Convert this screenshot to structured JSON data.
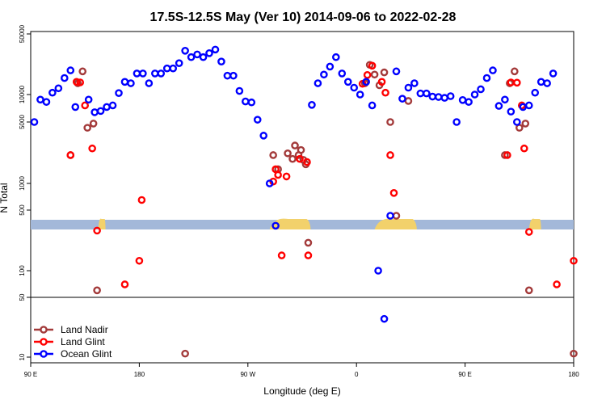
{
  "chart_data": {
    "type": "scatter",
    "title": "17.5S-12.5S May (Ver 10)   2014-09-06 to 2022-02-28",
    "xlabel": "Longitude (deg E)",
    "ylabel": "N Total",
    "y_scale": "log",
    "ylim": [
      7,
      55000
    ],
    "x_ticks": [
      "90 E",
      "180",
      "90 W",
      "0",
      "90 E",
      "180"
    ],
    "y_ticks": [
      "10",
      "50",
      "100",
      "500",
      "1000",
      "5000",
      "10000",
      "50000"
    ],
    "x_unit_note": "longitude eastward from 90 E (0 to 450 deg)",
    "legend_position": "bottom-left",
    "colors": {
      "land_nadir": "#a33a3a",
      "land_glint": "#ff0000",
      "ocean_glint": "#0000ff",
      "ocean_band": "#a3b8d9",
      "land_band": "#f2d16b"
    },
    "series": [
      {
        "name": "Land Nadir",
        "points": [
          [
            33,
            2100
          ],
          [
            39,
            13500
          ],
          [
            43,
            18500
          ],
          [
            47,
            4300
          ],
          [
            52,
            4800
          ],
          [
            55,
            60
          ],
          [
            128,
            11
          ],
          [
            201,
            2100
          ],
          [
            205,
            1450
          ],
          [
            213,
            2200
          ],
          [
            217,
            1900
          ],
          [
            219,
            2700
          ],
          [
            222,
            2100
          ],
          [
            224,
            2400
          ],
          [
            226,
            1850
          ],
          [
            228,
            1650
          ],
          [
            230,
            210
          ],
          [
            277,
            13500
          ],
          [
            281,
            22000
          ],
          [
            285,
            17000
          ],
          [
            289,
            12800
          ],
          [
            293,
            18000
          ],
          [
            298,
            5000
          ],
          [
            303,
            430
          ],
          [
            313,
            8500
          ],
          [
            393,
            2100
          ],
          [
            397,
            13500
          ],
          [
            401,
            18500
          ],
          [
            405,
            4300
          ],
          [
            410,
            4800
          ],
          [
            413,
            60
          ],
          [
            450,
            11
          ]
        ]
      },
      {
        "name": "Land Glint",
        "points": [
          [
            33,
            2100
          ],
          [
            38,
            14000
          ],
          [
            41,
            13800
          ],
          [
            45,
            7600
          ],
          [
            51,
            2500
          ],
          [
            55,
            290
          ],
          [
            78,
            70
          ],
          [
            90,
            130
          ],
          [
            92,
            650
          ],
          [
            201,
            1050
          ],
          [
            203,
            1450
          ],
          [
            205,
            1250
          ],
          [
            208,
            150
          ],
          [
            212,
            1200
          ],
          [
            223,
            1900
          ],
          [
            229,
            1750
          ],
          [
            230,
            150
          ],
          [
            275,
            13300
          ],
          [
            279,
            16800
          ],
          [
            283,
            21500
          ],
          [
            291,
            14000
          ],
          [
            294,
            10500
          ],
          [
            298,
            2100
          ],
          [
            301,
            780
          ],
          [
            395,
            2100
          ],
          [
            398,
            13800
          ],
          [
            403,
            13700
          ],
          [
            407,
            7600
          ],
          [
            409,
            2500
          ],
          [
            413,
            280
          ],
          [
            436,
            70
          ],
          [
            450,
            130
          ]
        ]
      },
      {
        "name": "Ocean Glint",
        "points": [
          [
            3,
            5000
          ],
          [
            8,
            8800
          ],
          [
            13,
            8300
          ],
          [
            18,
            10500
          ],
          [
            23,
            11800
          ],
          [
            28,
            15500
          ],
          [
            33,
            19000
          ],
          [
            37,
            7300
          ],
          [
            48,
            8800
          ],
          [
            53,
            6400
          ],
          [
            58,
            6600
          ],
          [
            63,
            7300
          ],
          [
            68,
            7600
          ],
          [
            73,
            10400
          ],
          [
            78,
            14000
          ],
          [
            83,
            13500
          ],
          [
            88,
            17500
          ],
          [
            93,
            17500
          ],
          [
            98,
            13500
          ],
          [
            103,
            17500
          ],
          [
            108,
            17500
          ],
          [
            113,
            20000
          ],
          [
            118,
            20000
          ],
          [
            123,
            23000
          ],
          [
            128,
            32000
          ],
          [
            133,
            27000
          ],
          [
            138,
            29000
          ],
          [
            143,
            27000
          ],
          [
            148,
            30000
          ],
          [
            153,
            33000
          ],
          [
            158,
            24000
          ],
          [
            163,
            16500
          ],
          [
            168,
            16500
          ],
          [
            173,
            11000
          ],
          [
            178,
            8400
          ],
          [
            183,
            8200
          ],
          [
            188,
            5300
          ],
          [
            193,
            3500
          ],
          [
            198,
            1000
          ],
          [
            203,
            330
          ],
          [
            233,
            7700
          ],
          [
            238,
            13500
          ],
          [
            243,
            17000
          ],
          [
            248,
            21000
          ],
          [
            253,
            27000
          ],
          [
            258,
            17500
          ],
          [
            263,
            14000
          ],
          [
            268,
            12000
          ],
          [
            273,
            10000
          ],
          [
            278,
            14000
          ],
          [
            283,
            7600
          ],
          [
            288,
            100
          ],
          [
            293,
            28
          ],
          [
            298,
            430
          ],
          [
            303,
            18500
          ],
          [
            308,
            9000
          ],
          [
            313,
            12000
          ],
          [
            318,
            13500
          ],
          [
            323,
            10300
          ],
          [
            328,
            10300
          ],
          [
            333,
            9500
          ],
          [
            338,
            9400
          ],
          [
            343,
            9200
          ],
          [
            348,
            9600
          ],
          [
            353,
            5000
          ],
          [
            358,
            8700
          ],
          [
            363,
            8300
          ],
          [
            368,
            10000
          ],
          [
            373,
            11500
          ],
          [
            378,
            15500
          ],
          [
            383,
            19000
          ],
          [
            388,
            7500
          ],
          [
            393,
            8800
          ],
          [
            398,
            6500
          ],
          [
            403,
            5000
          ],
          [
            408,
            7300
          ],
          [
            413,
            7600
          ],
          [
            418,
            10500
          ],
          [
            423,
            14000
          ],
          [
            428,
            13500
          ],
          [
            433,
            17500
          ]
        ]
      }
    ],
    "land_intervals": [
      [
        56,
        62
      ],
      [
        198,
        232
      ],
      [
        285,
        320
      ],
      [
        413,
        423
      ]
    ]
  }
}
